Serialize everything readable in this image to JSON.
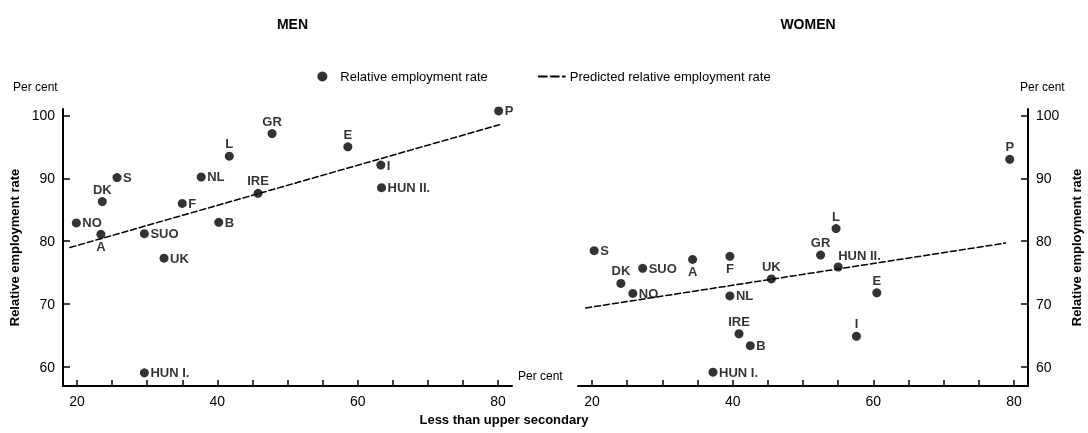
{
  "chart_data": [
    {
      "type": "scatter",
      "title": "MEN",
      "xlabel": "Less than upper secondary",
      "ylabel": "Relative employment rate",
      "xlim": [
        18,
        82
      ],
      "ylim": [
        57,
        101
      ],
      "xticks": [
        20,
        {
          "value": 25,
          "label": null
        },
        {
          "value": 30,
          "label": null
        },
        {
          "value": 35,
          "label": null
        },
        40,
        {
          "value": 45,
          "label": null
        },
        {
          "value": 50,
          "label": null
        },
        {
          "value": 55,
          "label": null
        },
        60,
        {
          "value": 65,
          "label": null
        },
        {
          "value": 70,
          "label": null
        },
        {
          "value": 75,
          "label": null
        },
        80
      ],
      "yticks": [
        60,
        70,
        80,
        90,
        100
      ],
      "grid": false,
      "legend": "top",
      "series": [
        {
          "name": "Relative employment rate",
          "type": "scatter",
          "color": "#000000",
          "x": [
            19.9,
            23.4,
            23.6,
            25.7,
            29.6,
            29.6,
            32.4,
            35.0,
            37.7,
            40.2,
            41.7,
            45.8,
            47.8,
            58.6,
            63.3,
            63.4,
            80.1
          ],
          "values": [
            82.9,
            81.1,
            86.3,
            90.1,
            81.2,
            59.1,
            77.3,
            86.0,
            90.2,
            83.0,
            93.5,
            87.6,
            97.1,
            95.0,
            92.1,
            88.5,
            100.7
          ]
        },
        {
          "name": "Predicted relative employment rate",
          "type": "line",
          "line_style": "dashed",
          "color": "#000000",
          "x": [
            19.0,
            80.2
          ],
          "values": [
            79.0,
            98.5
          ]
        }
      ],
      "annotations": [
        "Per cent",
        {
          "text": "NO",
          "x": 19.9,
          "y": 82.9
        },
        {
          "text": "A",
          "x": 23.4,
          "y": 81.1
        },
        {
          "text": "DK",
          "x": 23.6,
          "y": 86.3
        },
        {
          "text": "S",
          "x": 25.7,
          "y": 90.1
        },
        {
          "text": "SUO",
          "x": 29.6,
          "y": 81.2
        },
        {
          "text": "HUN I.",
          "x": 29.6,
          "y": 59.1
        },
        {
          "text": "UK",
          "x": 32.4,
          "y": 77.3
        },
        {
          "text": "F",
          "x": 35.0,
          "y": 86.0
        },
        {
          "text": "NL",
          "x": 37.7,
          "y": 90.2
        },
        {
          "text": "B",
          "x": 40.2,
          "y": 83.0
        },
        {
          "text": "L",
          "x": 41.7,
          "y": 93.5
        },
        {
          "text": "IRE",
          "x": 45.8,
          "y": 87.6
        },
        {
          "text": "GR",
          "x": 47.8,
          "y": 97.1
        },
        {
          "text": "E",
          "x": 58.6,
          "y": 95.0
        },
        {
          "text": "I",
          "x": 63.3,
          "y": 92.1
        },
        {
          "text": "HUN II.",
          "x": 63.4,
          "y": 88.5
        },
        {
          "text": "P",
          "x": 80.1,
          "y": 100.7
        }
      ]
    },
    {
      "type": "scatter",
      "title": "WOMEN",
      "ylabel": "Relative employment rate",
      "xlim": [
        18,
        82
      ],
      "ylim": [
        57,
        101
      ],
      "xticks": [
        20,
        {
          "value": 25,
          "label": null
        },
        {
          "value": 30,
          "label": null
        },
        {
          "value": 35,
          "label": null
        },
        40,
        {
          "value": 45,
          "label": null
        },
        {
          "value": 50,
          "label": null
        },
        {
          "value": 55,
          "label": null
        },
        60,
        {
          "value": 65,
          "label": null
        },
        {
          "value": 70,
          "label": null
        },
        {
          "value": 75,
          "label": null
        },
        80
      ],
      "yticks": [
        60,
        70,
        80,
        90,
        100
      ],
      "grid": false,
      "series": [
        {
          "type": "scatter",
          "color": "#000000",
          "x": [
            20.3,
            24.1,
            25.8,
            27.2,
            34.3,
            39.6,
            39.6,
            45.5,
            40.9,
            42.5,
            37.2,
            52.5,
            54.7,
            55.0,
            60.5,
            57.6,
            79.4
          ],
          "values": [
            78.5,
            73.3,
            71.7,
            75.7,
            77.1,
            77.6,
            71.3,
            74.0,
            65.3,
            63.4,
            59.2,
            77.8,
            82.0,
            75.9,
            71.8,
            64.9,
            93.0
          ]
        },
        {
          "type": "line",
          "line_style": "dashed",
          "color": "#000000",
          "x": [
            19.1,
            78.8
          ],
          "values": [
            69.4,
            79.7
          ]
        }
      ],
      "annotations": [
        "Per cent",
        "Per cent",
        {
          "text": "S",
          "x": 20.3,
          "y": 78.5
        },
        {
          "text": "DK",
          "x": 24.1,
          "y": 73.3
        },
        {
          "text": "NO",
          "x": 25.8,
          "y": 71.7
        },
        {
          "text": "SUO",
          "x": 27.2,
          "y": 75.7
        },
        {
          "text": "A",
          "x": 34.3,
          "y": 77.1
        },
        {
          "text": "F",
          "x": 39.6,
          "y": 77.6
        },
        {
          "text": "NL",
          "x": 39.6,
          "y": 71.3
        },
        {
          "text": "UK",
          "x": 45.5,
          "y": 74.0
        },
        {
          "text": "IRE",
          "x": 40.9,
          "y": 65.3
        },
        {
          "text": "B",
          "x": 42.5,
          "y": 63.4
        },
        {
          "text": "HUN I.",
          "x": 37.2,
          "y": 59.2
        },
        {
          "text": "GR",
          "x": 52.5,
          "y": 77.8
        },
        {
          "text": "L",
          "x": 54.7,
          "y": 82.0
        },
        {
          "text": "HUN II.",
          "x": 55.0,
          "y": 75.9
        },
        {
          "text": "E",
          "x": 60.5,
          "y": 71.8
        },
        {
          "text": "I",
          "x": 57.6,
          "y": 64.9
        },
        {
          "text": "P",
          "x": 79.4,
          "y": 93.0
        }
      ]
    }
  ]
}
